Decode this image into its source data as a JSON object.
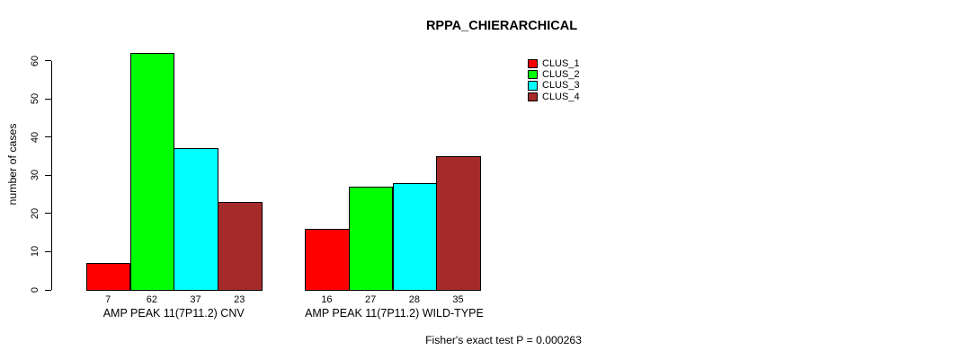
{
  "chart_data": {
    "type": "bar",
    "title": "RPPA_CHIERARCHICAL",
    "ylabel": "number of cases",
    "xlabel": "",
    "annotation": "Fisher's exact test P = 0.000263",
    "categories": [
      "AMP PEAK 11(7P11.2) CNV",
      "AMP PEAK 11(7P11.2) WILD-TYPE"
    ],
    "series": [
      {
        "name": "CLUS_1",
        "color": "#ff0000",
        "values": [
          7,
          16
        ]
      },
      {
        "name": "CLUS_2",
        "color": "#00ff00",
        "values": [
          62,
          27
        ]
      },
      {
        "name": "CLUS_3",
        "color": "#00ffff",
        "values": [
          37,
          28
        ]
      },
      {
        "name": "CLUS_4",
        "color": "#a52a2a",
        "values": [
          23,
          35
        ]
      }
    ],
    "yticks": [
      0,
      10,
      20,
      30,
      40,
      50,
      60
    ],
    "ylim": [
      0,
      62
    ],
    "grid": false,
    "legend_position": "top-right",
    "bar_value_labels": true,
    "bar_border_color": "#000000",
    "background_color": "#ffffff",
    "text_color": "#000000"
  }
}
